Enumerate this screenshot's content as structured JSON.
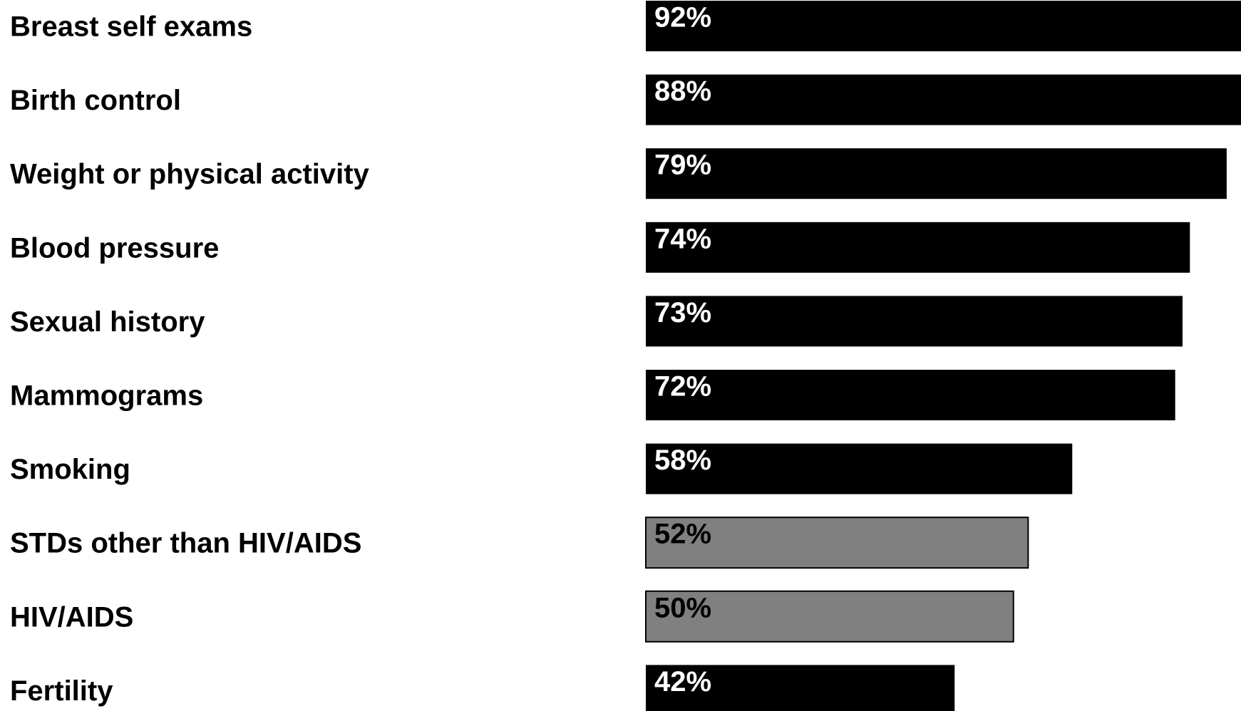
{
  "chart_data": {
    "type": "bar",
    "orientation": "horizontal",
    "categories": [
      "Breast self exams",
      "Birth control",
      "Weight or physical activity",
      "Blood pressure",
      "Sexual history",
      "Mammograms",
      "Smoking",
      "STDs other than HIV/AIDS",
      "HIV/AIDS",
      "Fertility"
    ],
    "values": [
      92,
      88,
      79,
      74,
      73,
      72,
      58,
      52,
      50,
      42
    ],
    "value_labels": [
      "92%",
      "88%",
      "79%",
      "74%",
      "73%",
      "72%",
      "58%",
      "52%",
      "50%",
      "42%"
    ],
    "highlighted": [
      false,
      false,
      false,
      false,
      false,
      false,
      false,
      true,
      true,
      false
    ],
    "unit": "%",
    "xlim": [
      0,
      80
    ],
    "title": "",
    "xlabel": "",
    "ylabel": "",
    "grid": false,
    "legend": "none",
    "colors": {
      "bar": "#000000",
      "bar_highlight": "#808080",
      "bar_highlight_border": "#000000",
      "label_on_bar": "#ffffff",
      "label_on_highlight": "#000000",
      "category_text": "#000000",
      "background": "#ffffff"
    }
  }
}
